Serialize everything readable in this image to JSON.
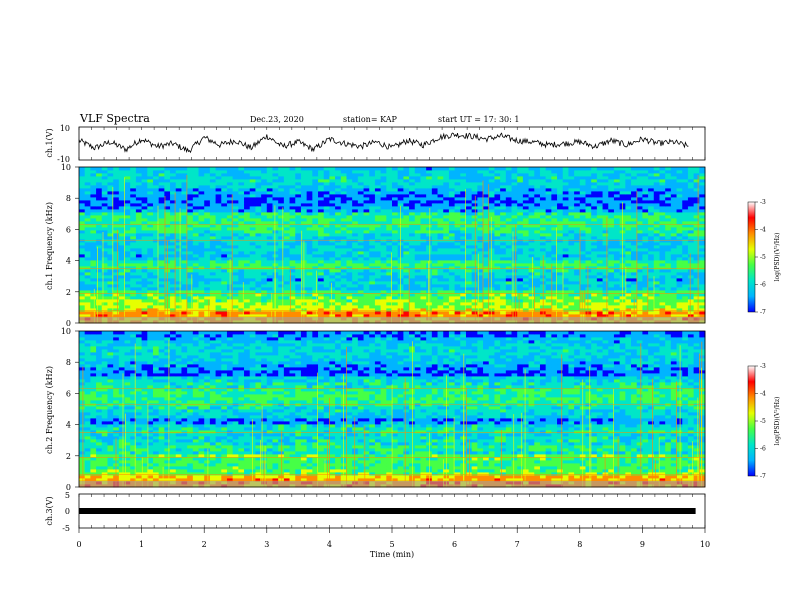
{
  "header": {
    "title": "VLF Spectra",
    "date": "Dec.23, 2020",
    "station": "station= KAP",
    "start": "start  UT  =   17: 30: 1"
  },
  "colorbar": {
    "label": "log(PSD)(V²/Hz)",
    "ticks": [
      "-3",
      "-4",
      "-5",
      "-6",
      "-7"
    ]
  },
  "chart_data": [
    {
      "type": "line",
      "panel": "ch1-waveform",
      "ylabel": "ch.1(V)",
      "ylim": [
        -10,
        10
      ],
      "yticks": [
        "10",
        "-10"
      ],
      "xlim": [
        0,
        10
      ],
      "series": [
        {
          "x": [
            0,
            0.25,
            0.5,
            0.75,
            1,
            1.25,
            1.5,
            1.75,
            2,
            2.25,
            2.5,
            2.75,
            3,
            3.25,
            3.5,
            3.75,
            4,
            4.25,
            4.5,
            4.75,
            5,
            5.25,
            5.5,
            5.75,
            6,
            6.25,
            6.5,
            6.75,
            7,
            7.25,
            7.5,
            7.75,
            8,
            8.25,
            8.5,
            8.75,
            9,
            9.25,
            9.5,
            9.75
          ],
          "values": [
            2,
            -3,
            1,
            -4,
            3,
            -2,
            0,
            -5,
            4,
            -1,
            2,
            -3,
            5,
            -2,
            1,
            -4,
            3,
            0,
            -2,
            1,
            -3,
            2,
            -1,
            4,
            6,
            5,
            3,
            5,
            2,
            1,
            -1,
            0,
            1,
            -2,
            2,
            -1,
            3,
            0,
            1,
            -2
          ]
        }
      ]
    },
    {
      "type": "heatmap",
      "panel": "ch1-spectrogram",
      "ylabel": "ch.1 Frequency (kHz)",
      "yticks": [
        "0",
        "2",
        "4",
        "6",
        "8",
        "10"
      ],
      "ylim": [
        0,
        10
      ],
      "xlim": [
        0,
        10
      ],
      "colorscale": [
        "#0000ff",
        "#00b4ff",
        "#00e6c8",
        "#46ff46",
        "#e6ff00",
        "#ff8c00",
        "#ff0000",
        "#ffffff"
      ],
      "zlim": [
        -7,
        -3
      ]
    },
    {
      "type": "heatmap",
      "panel": "ch2-spectrogram",
      "ylabel": "ch.2 Frequency (kHz)",
      "yticks": [
        "0",
        "2",
        "4",
        "6",
        "8",
        "10"
      ],
      "ylim": [
        0,
        10
      ],
      "xlim": [
        0,
        10
      ],
      "colorscale": [
        "#0000ff",
        "#00b4ff",
        "#00e6c8",
        "#46ff46",
        "#e6ff00",
        "#ff8c00",
        "#ff0000",
        "#ffffff"
      ],
      "zlim": [
        -7,
        -3
      ]
    },
    {
      "type": "line",
      "panel": "ch3-waveform",
      "ylabel": "ch.3(V)",
      "ylim": [
        -5,
        5
      ],
      "yticks": [
        "5",
        "0",
        "-5"
      ],
      "xlim": [
        0,
        9.85
      ],
      "series": [
        {
          "x": [
            0,
            9.85
          ],
          "values": [
            0,
            0
          ]
        }
      ]
    }
  ],
  "xaxis": {
    "label": "Time (min)",
    "ticks": [
      "0",
      "1",
      "2",
      "3",
      "4",
      "5",
      "6",
      "7",
      "8",
      "9",
      "10"
    ]
  }
}
